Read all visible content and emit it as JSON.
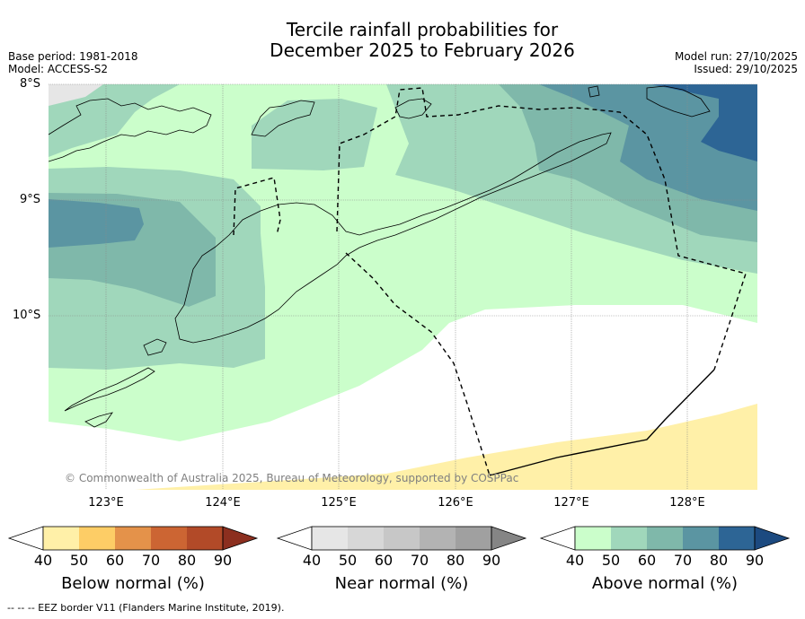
{
  "title": {
    "line1": "Tercile rainfall probabilities for",
    "line2": "December 2025 to February 2026"
  },
  "meta_left": {
    "base_period": "Base period: 1981-2018",
    "model": "Model: ACCESS-S2"
  },
  "meta_right": {
    "model_run": "Model run: 27/10/2025",
    "issued": "Issued: 29/10/2025"
  },
  "map": {
    "lat_labels": [
      "8°S",
      "9°S",
      "10°S"
    ],
    "lon_labels": [
      "123°E",
      "124°E",
      "125°E",
      "126°E",
      "127°E",
      "128°E"
    ],
    "copyright": "© Commonwealth of Australia 2025, Bureau of Meteorology, supported by COSPPac"
  },
  "colorbars": [
    {
      "title": "Below normal (%)",
      "ticks": [
        "40",
        "50",
        "60",
        "70",
        "80",
        "90"
      ],
      "colors": [
        "#ffffff",
        "#fff0a8",
        "#fdcd66",
        "#e4924a",
        "#cc6533",
        "#b24a28",
        "#8c2f1f"
      ]
    },
    {
      "title": "Near normal (%)",
      "ticks": [
        "40",
        "50",
        "60",
        "70",
        "80",
        "90"
      ],
      "colors": [
        "#ffffff",
        "#e6e6e6",
        "#d7d7d7",
        "#c7c7c7",
        "#b3b3b3",
        "#a0a0a0",
        "#858585"
      ]
    },
    {
      "title": "Above normal (%)",
      "ticks": [
        "40",
        "50",
        "60",
        "70",
        "80",
        "90"
      ],
      "colors": [
        "#ffffff",
        "#cbfecb",
        "#a0d7bb",
        "#7fb8aa",
        "#5b95a2",
        "#2d6595",
        "#1c4a80"
      ]
    }
  ],
  "footer": {
    "legend": "-- -- -- EEZ border V11 (Flanders Marine Institute, 2019)."
  }
}
